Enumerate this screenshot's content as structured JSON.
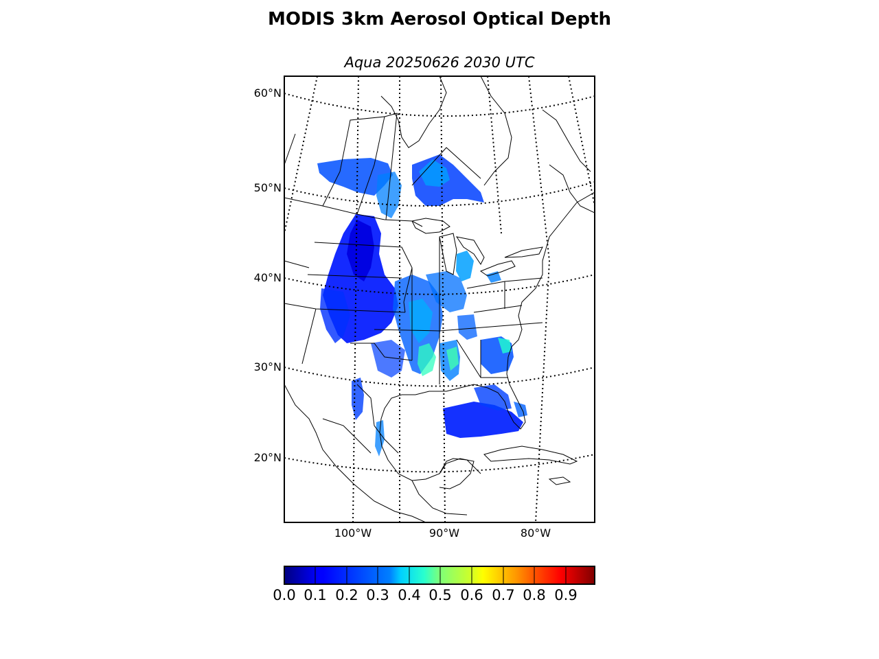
{
  "figure": {
    "title": "MODIS 3km Aerosol Optical Depth",
    "subtitle": "Aqua 20250626 2030 UTC"
  },
  "map": {
    "projection": "lambert-conformal",
    "lat_labels": [
      "60°N",
      "50°N",
      "40°N",
      "30°N",
      "20°N"
    ],
    "lon_labels": [
      "100°W",
      "90°W",
      "80°W"
    ],
    "graticule_style": "dotted",
    "coastline_color": "#000000"
  },
  "colorbar": {
    "colormap": "jet",
    "range": [
      0.0,
      1.0
    ],
    "tick_labels": [
      "0.0",
      "0.1",
      "0.2",
      "0.3",
      "0.4",
      "0.5",
      "0.6",
      "0.7",
      "0.8",
      "0.9"
    ]
  }
}
